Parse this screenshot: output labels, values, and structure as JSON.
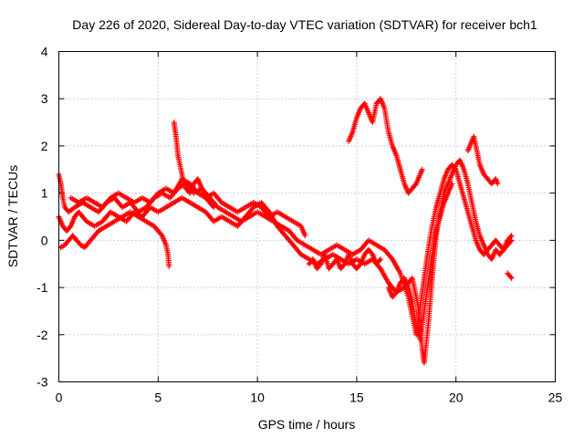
{
  "chart_data": {
    "type": "scatter",
    "title": "Day 226 of 2020, Sidereal Day-to-day VTEC variation (SDTVAR) for receiver bch1",
    "xlabel": "GPS time / hours",
    "ylabel": "SDTVAR / TECUs",
    "xlim": [
      0,
      25
    ],
    "ylim": [
      -3,
      4
    ],
    "xticks": [
      0,
      5,
      10,
      15,
      20,
      25
    ],
    "yticks": [
      -3,
      -2,
      -1,
      0,
      1,
      2,
      3,
      4
    ],
    "grid": true,
    "marker": "+",
    "series": [
      {
        "name": "SDTVAR",
        "color": "#ff0000",
        "tracks": [
          [
            [
              0.0,
              1.4
            ],
            [
              0.1,
              1.2
            ],
            [
              0.2,
              0.9
            ],
            [
              0.3,
              0.7
            ],
            [
              0.5,
              0.6
            ],
            [
              0.8,
              0.7
            ],
            [
              1.2,
              0.8
            ],
            [
              1.6,
              0.7
            ],
            [
              2.0,
              0.6
            ],
            [
              2.4,
              0.8
            ],
            [
              2.8,
              0.9
            ],
            [
              3.2,
              0.7
            ],
            [
              3.6,
              0.8
            ],
            [
              4.0,
              0.6
            ],
            [
              4.4,
              0.7
            ],
            [
              4.8,
              0.9
            ],
            [
              5.2,
              1.0
            ],
            [
              5.6,
              0.9
            ],
            [
              6.0,
              1.1
            ],
            [
              6.4,
              1.2
            ],
            [
              6.8,
              1.0
            ],
            [
              7.2,
              1.1
            ],
            [
              7.6,
              0.9
            ],
            [
              8.0,
              0.7
            ],
            [
              8.4,
              0.6
            ],
            [
              8.8,
              0.5
            ],
            [
              9.2,
              0.4
            ],
            [
              9.6,
              0.5
            ],
            [
              10.0,
              0.6
            ],
            [
              10.4,
              0.5
            ],
            [
              10.8,
              0.4
            ],
            [
              11.2,
              0.3
            ],
            [
              11.6,
              0.2
            ],
            [
              12.0,
              0.0
            ],
            [
              12.4,
              -0.1
            ],
            [
              12.8,
              -0.2
            ],
            [
              13.2,
              -0.3
            ],
            [
              13.6,
              -0.2
            ],
            [
              14.0,
              -0.1
            ],
            [
              14.4,
              -0.2
            ],
            [
              14.8,
              -0.3
            ],
            [
              15.2,
              -0.2
            ],
            [
              15.6,
              0.0
            ],
            [
              16.0,
              -0.1
            ],
            [
              16.4,
              -0.2
            ],
            [
              16.8,
              -0.4
            ],
            [
              17.2,
              -0.7
            ],
            [
              17.6,
              -1.2
            ],
            [
              17.9,
              -1.8
            ],
            [
              18.0,
              -2.0
            ],
            [
              18.2,
              -1.4
            ],
            [
              18.4,
              -0.8
            ],
            [
              18.6,
              -0.2
            ],
            [
              18.8,
              0.3
            ],
            [
              19.0,
              0.7
            ],
            [
              19.2,
              1.0
            ],
            [
              19.4,
              1.3
            ],
            [
              19.6,
              1.5
            ],
            [
              19.8,
              1.6
            ],
            [
              20.0,
              1.5
            ],
            [
              20.2,
              1.2
            ],
            [
              20.4,
              0.9
            ],
            [
              20.6,
              0.6
            ],
            [
              20.8,
              0.3
            ],
            [
              21.0,
              0.0
            ],
            [
              21.2,
              -0.2
            ],
            [
              21.4,
              -0.3
            ],
            [
              21.6,
              -0.2
            ],
            [
              21.8,
              -0.1
            ],
            [
              22.0,
              0.0
            ],
            [
              22.2,
              -0.1
            ],
            [
              22.4,
              -0.2
            ],
            [
              22.6,
              -0.1
            ],
            [
              22.8,
              0.0
            ]
          ],
          [
            [
              0.0,
              0.5
            ],
            [
              0.2,
              0.3
            ],
            [
              0.4,
              0.2
            ],
            [
              0.6,
              0.3
            ],
            [
              0.8,
              0.5
            ],
            [
              1.0,
              0.6
            ],
            [
              1.4,
              0.4
            ],
            [
              1.8,
              0.3
            ],
            [
              2.2,
              0.4
            ],
            [
              2.6,
              0.6
            ],
            [
              3.0,
              0.5
            ],
            [
              3.4,
              0.4
            ],
            [
              3.8,
              0.6
            ],
            [
              4.2,
              0.5
            ],
            [
              4.6,
              0.7
            ],
            [
              5.0,
              0.6
            ],
            [
              5.4,
              0.7
            ],
            [
              5.8,
              0.8
            ],
            [
              6.2,
              0.9
            ],
            [
              6.6,
              0.8
            ],
            [
              7.0,
              0.7
            ],
            [
              7.4,
              0.6
            ],
            [
              7.8,
              0.4
            ],
            [
              8.2,
              0.5
            ],
            [
              8.6,
              0.4
            ],
            [
              9.0,
              0.3
            ],
            [
              9.4,
              0.5
            ],
            [
              9.8,
              0.7
            ],
            [
              10.2,
              0.8
            ],
            [
              10.6,
              0.6
            ],
            [
              11.0,
              0.3
            ],
            [
              11.4,
              0.1
            ],
            [
              11.8,
              -0.1
            ],
            [
              12.2,
              -0.3
            ],
            [
              12.6,
              -0.4
            ],
            [
              13.0,
              -0.5
            ],
            [
              13.4,
              -0.4
            ],
            [
              13.8,
              -0.3
            ],
            [
              14.2,
              -0.4
            ],
            [
              14.6,
              -0.5
            ],
            [
              15.0,
              -0.4
            ],
            [
              15.4,
              -0.5
            ],
            [
              15.8,
              -0.4
            ],
            [
              16.2,
              -0.6
            ],
            [
              16.6,
              -0.9
            ],
            [
              17.0,
              -1.1
            ],
            [
              17.4,
              -1.0
            ],
            [
              17.8,
              -0.8
            ],
            [
              18.1,
              -1.4
            ],
            [
              18.3,
              -2.3
            ],
            [
              18.4,
              -2.6
            ],
            [
              18.6,
              -1.8
            ],
            [
              18.8,
              -0.8
            ],
            [
              19.0,
              0.1
            ],
            [
              19.2,
              0.6
            ],
            [
              19.4,
              1.0
            ],
            [
              19.6,
              1.2
            ],
            [
              19.8,
              1.4
            ],
            [
              20.0,
              1.6
            ],
            [
              20.2,
              1.7
            ],
            [
              20.4,
              1.5
            ],
            [
              20.6,
              1.2
            ],
            [
              20.8,
              0.8
            ],
            [
              21.0,
              0.4
            ],
            [
              21.2,
              0.1
            ],
            [
              21.4,
              -0.1
            ],
            [
              21.6,
              -0.3
            ],
            [
              21.8,
              -0.4
            ],
            [
              22.0,
              -0.2
            ],
            [
              22.2,
              -0.3
            ],
            [
              22.4,
              -0.2
            ],
            [
              22.6,
              0.0
            ],
            [
              22.8,
              0.1
            ]
          ],
          [
            [
              0.1,
              -0.15
            ],
            [
              0.3,
              -0.1
            ],
            [
              0.5,
              0.0
            ],
            [
              0.7,
              0.1
            ],
            [
              0.9,
              0.0
            ],
            [
              1.1,
              -0.1
            ],
            [
              1.3,
              -0.15
            ],
            [
              1.6,
              0.0
            ],
            [
              2.0,
              0.2
            ],
            [
              2.4,
              0.3
            ],
            [
              2.8,
              0.4
            ],
            [
              3.2,
              0.5
            ],
            [
              3.6,
              0.6
            ],
            [
              4.0,
              0.5
            ],
            [
              4.4,
              0.4
            ],
            [
              4.8,
              0.3
            ],
            [
              5.0,
              0.2
            ],
            [
              5.2,
              0.1
            ],
            [
              5.4,
              -0.1
            ],
            [
              5.5,
              -0.3
            ],
            [
              5.55,
              -0.55
            ]
          ],
          [
            [
              5.8,
              2.5
            ],
            [
              5.9,
              2.2
            ],
            [
              6.0,
              1.8
            ],
            [
              6.1,
              1.6
            ],
            [
              6.2,
              1.4
            ],
            [
              6.3,
              1.2
            ],
            [
              6.4,
              1.1
            ],
            [
              6.6,
              1.0
            ],
            [
              6.8,
              1.2
            ],
            [
              7.0,
              1.3
            ],
            [
              7.2,
              1.1
            ],
            [
              7.4,
              0.9
            ],
            [
              7.6,
              0.8
            ],
            [
              7.8,
              0.7
            ]
          ],
          [
            [
              14.6,
              2.1
            ],
            [
              14.8,
              2.3
            ],
            [
              15.0,
              2.6
            ],
            [
              15.2,
              2.8
            ],
            [
              15.4,
              2.9
            ],
            [
              15.6,
              2.7
            ],
            [
              15.8,
              2.5
            ],
            [
              16.0,
              2.9
            ],
            [
              16.2,
              3.0
            ],
            [
              16.4,
              2.8
            ],
            [
              16.6,
              2.3
            ],
            [
              16.8,
              2.0
            ],
            [
              17.0,
              1.8
            ],
            [
              17.2,
              1.5
            ],
            [
              17.4,
              1.2
            ],
            [
              17.6,
              1.0
            ],
            [
              17.8,
              1.1
            ],
            [
              18.0,
              1.2
            ],
            [
              18.2,
              1.4
            ],
            [
              18.3,
              1.5
            ]
          ],
          [
            [
              16.6,
              -1.0
            ],
            [
              16.8,
              -1.2
            ],
            [
              17.0,
              -1.1
            ],
            [
              17.2,
              -0.9
            ],
            [
              17.4,
              -0.8
            ],
            [
              17.6,
              -1.0
            ],
            [
              17.8,
              -1.3
            ],
            [
              18.0,
              -1.8
            ],
            [
              18.2,
              -2.1
            ],
            [
              18.4,
              -1.5
            ],
            [
              18.6,
              -0.9
            ],
            [
              18.8,
              -0.3
            ],
            [
              19.0,
              0.2
            ],
            [
              19.2,
              0.5
            ],
            [
              19.4,
              0.8
            ],
            [
              19.6,
              1.0
            ],
            [
              19.8,
              1.2
            ]
          ],
          [
            [
              20.6,
              1.9
            ],
            [
              20.8,
              2.1
            ],
            [
              20.9,
              2.2
            ],
            [
              21.0,
              2.0
            ],
            [
              21.1,
              1.8
            ],
            [
              21.2,
              1.6
            ],
            [
              21.4,
              1.4
            ],
            [
              21.6,
              1.3
            ],
            [
              21.8,
              1.2
            ],
            [
              22.0,
              1.3
            ],
            [
              22.1,
              1.2
            ]
          ],
          [
            [
              22.6,
              -0.7
            ],
            [
              22.7,
              -0.75
            ],
            [
              22.8,
              -0.8
            ]
          ],
          [
            [
              12.6,
              -0.5
            ],
            [
              12.8,
              -0.4
            ],
            [
              13.0,
              -0.6
            ],
            [
              13.2,
              -0.5
            ],
            [
              13.4,
              -0.3
            ],
            [
              13.6,
              -0.6
            ],
            [
              13.8,
              -0.5
            ],
            [
              14.0,
              -0.4
            ],
            [
              14.2,
              -0.6
            ],
            [
              14.4,
              -0.5
            ],
            [
              14.6,
              -0.3
            ],
            [
              14.8,
              -0.5
            ],
            [
              15.0,
              -0.6
            ],
            [
              15.2,
              -0.5
            ],
            [
              15.4,
              -0.3
            ],
            [
              15.6,
              -0.2
            ],
            [
              15.8,
              -0.3
            ],
            [
              16.0,
              -0.5
            ],
            [
              16.2,
              -0.4
            ]
          ],
          [
            [
              0.6,
              0.9
            ],
            [
              1.0,
              0.8
            ],
            [
              1.4,
              0.9
            ],
            [
              1.8,
              0.8
            ],
            [
              2.2,
              0.7
            ],
            [
              2.6,
              0.9
            ],
            [
              3.0,
              1.0
            ],
            [
              3.4,
              0.9
            ],
            [
              3.8,
              0.8
            ],
            [
              4.2,
              0.9
            ],
            [
              4.6,
              0.8
            ],
            [
              5.0,
              1.0
            ],
            [
              5.4,
              1.1
            ],
            [
              5.8,
              1.0
            ],
            [
              6.2,
              1.3
            ],
            [
              6.6,
              1.2
            ],
            [
              7.0,
              1.0
            ],
            [
              7.4,
              0.9
            ],
            [
              7.8,
              1.0
            ],
            [
              8.2,
              0.8
            ],
            [
              8.6,
              0.7
            ],
            [
              9.0,
              0.6
            ],
            [
              9.4,
              0.7
            ],
            [
              9.8,
              0.8
            ],
            [
              10.2,
              0.7
            ],
            [
              10.6,
              0.5
            ],
            [
              11.0,
              0.6
            ],
            [
              11.4,
              0.5
            ],
            [
              11.8,
              0.4
            ],
            [
              12.2,
              0.3
            ],
            [
              12.4,
              0.1
            ]
          ]
        ]
      }
    ]
  }
}
